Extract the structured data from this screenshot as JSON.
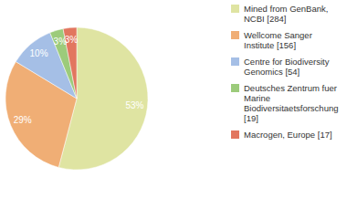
{
  "chart_data": {
    "type": "pie",
    "categories": [
      "Mined from GenBank, NCBI [284]",
      "Wellcome Sanger Institute [156]",
      "Centre for Biodiversity Genomics [54]",
      "Deutsches Zentrum fuer Marine Biodiversitaetsforschung [19]",
      "Macrogen, Europe [17]"
    ],
    "values": [
      53,
      29,
      10,
      3,
      3
    ],
    "value_labels": [
      "53%",
      "29%",
      "10%",
      "3%",
      "3%"
    ],
    "colors": [
      "#dfe4a2",
      "#f0ae75",
      "#a5bfe6",
      "#9ccb7b",
      "#e2765f"
    ],
    "data_labels": true,
    "legend": "upper right"
  }
}
